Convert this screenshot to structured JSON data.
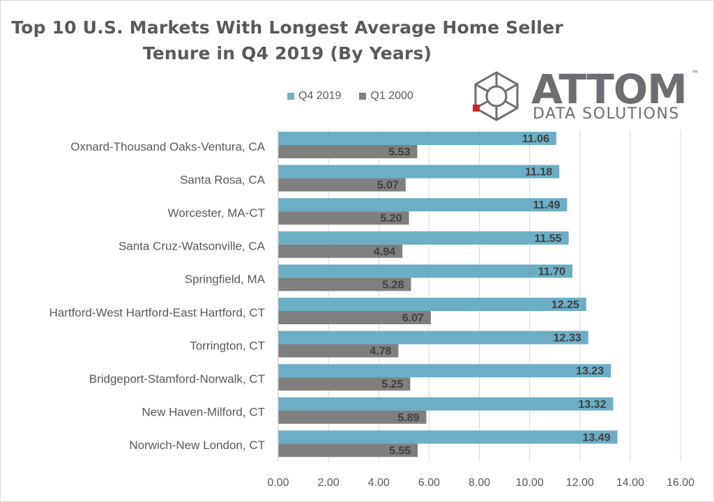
{
  "chart_data": {
    "type": "bar",
    "orientation": "horizontal",
    "title_line1": "Top 10 U.S. Markets With Longest Average Home Seller",
    "title_line2": "Tenure in Q4 2019 (By Years)",
    "categories": [
      "Oxnard-Thousand Oaks-Ventura, CA",
      "Santa Rosa, CA",
      "Worcester, MA-CT",
      "Santa Cruz-Watsonville, CA",
      "Springfield, MA",
      "Hartford-West Hartford-East Hartford, CT",
      "Torrington, CT",
      "Bridgeport-Stamford-Norwalk, CT",
      "New Haven-Milford, CT",
      "Norwich-New London, CT"
    ],
    "series": [
      {
        "name": "Q4 2019",
        "color": "#6baec6",
        "values": [
          11.06,
          11.18,
          11.49,
          11.55,
          11.7,
          12.25,
          12.33,
          13.23,
          13.32,
          13.49
        ],
        "labels": [
          "11.06",
          "11.18",
          "11.49",
          "11.55",
          "11.70",
          "12.25",
          "12.33",
          "13.23",
          "13.32",
          "13.49"
        ]
      },
      {
        "name": "Q1 2000",
        "color": "#7f7f7f",
        "values": [
          5.53,
          5.07,
          5.2,
          4.94,
          5.28,
          6.07,
          4.78,
          5.25,
          5.89,
          5.55
        ],
        "labels": [
          "5.53",
          "5.07",
          "5.20",
          "4.94",
          "5.28",
          "6.07",
          "4.78",
          "5.25",
          "5.89",
          "5.55"
        ]
      }
    ],
    "xlim": [
      0,
      16
    ],
    "xticks": [
      "0.00",
      "2.00",
      "4.00",
      "6.00",
      "8.00",
      "10.00",
      "12.00",
      "14.00",
      "16.00"
    ],
    "grid": true,
    "legend_position": "top"
  },
  "logo": {
    "name": "ATTOM",
    "tagline": "DATA SOLUTIONS",
    "trademark": "™"
  }
}
